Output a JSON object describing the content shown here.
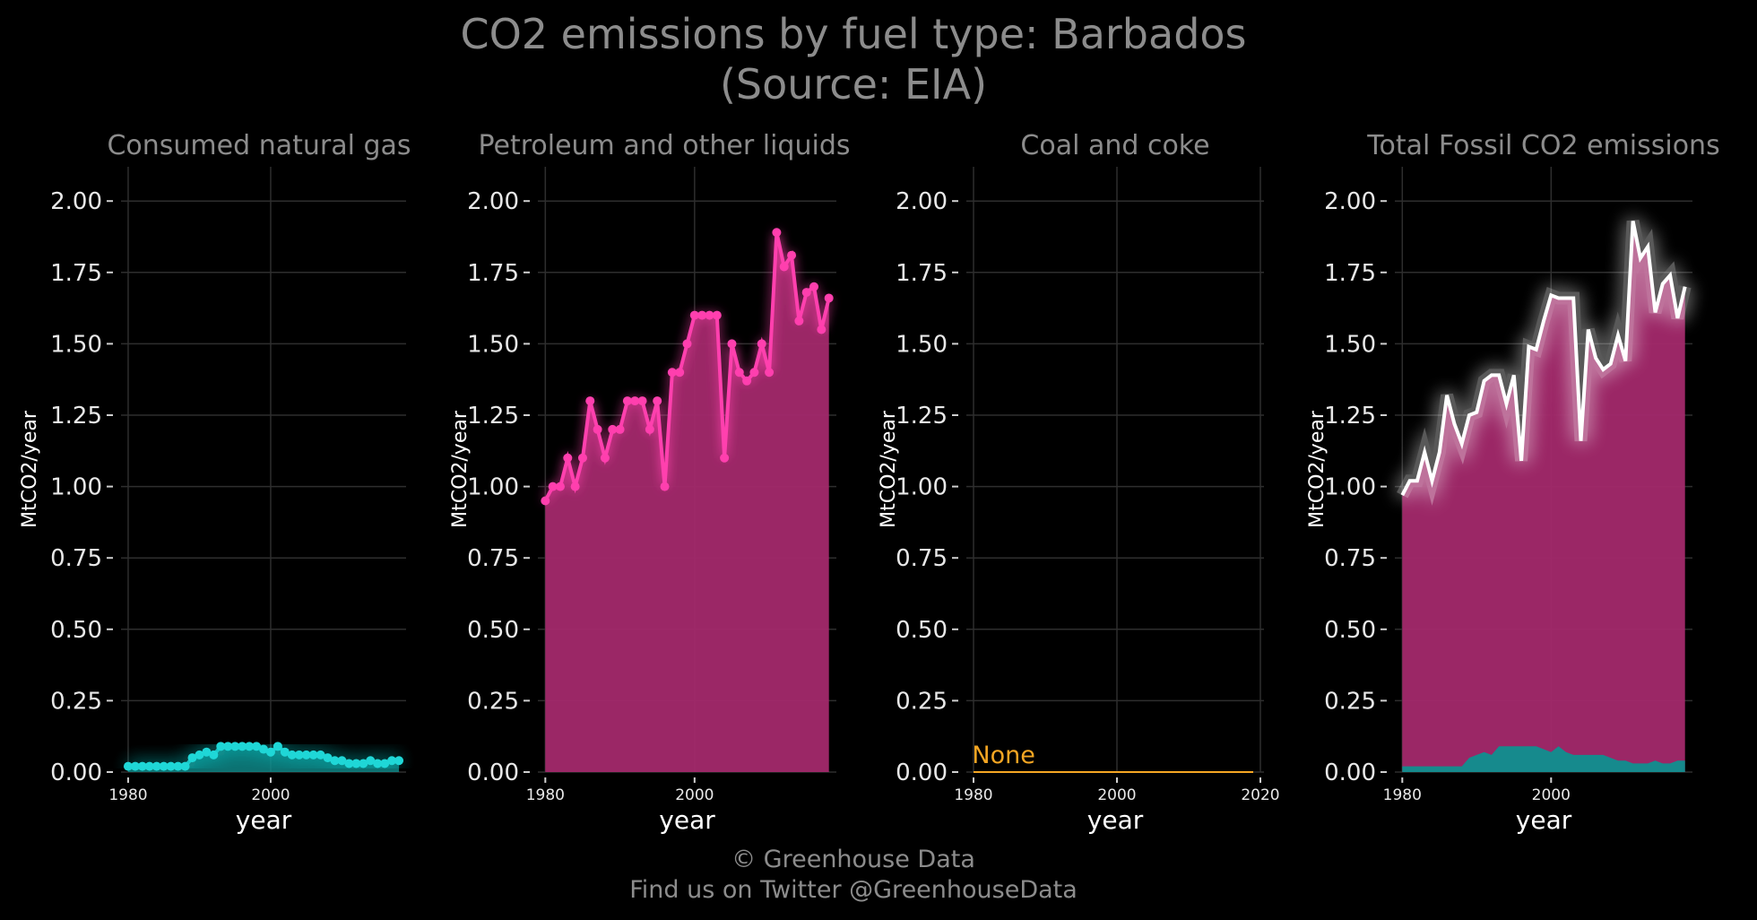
{
  "title_line1": "CO2 emissions by fuel type: Barbados",
  "title_line2": "(Source: EIA)",
  "footer_line1": "© Greenhouse Data",
  "footer_line2": "Find us on Twitter @GreenhouseData",
  "colors": {
    "gas": "#1fd7d7",
    "gas_fill": "#0f8f8f",
    "petroleum": "#ff3fae",
    "petroleum_fill": "#a3296b",
    "coal": "#f5a623",
    "total_line": "#ffffff",
    "background": "#000000"
  },
  "chart_data": [
    {
      "type": "area",
      "title": "Consumed natural gas",
      "xlabel": "year",
      "ylabel": "MtCO2/year",
      "ylim": [
        0,
        2.0
      ],
      "yticks": [
        "0.00",
        "0.25",
        "0.50",
        "0.75",
        "1.00",
        "1.25",
        "1.50",
        "1.75",
        "2.00"
      ],
      "xticks": [
        "1980",
        "2000"
      ],
      "xticks_values": [
        1980,
        2000
      ],
      "xlim": [
        1979,
        2019
      ],
      "series": [
        {
          "x": [
            1980,
            1981,
            1982,
            1983,
            1984,
            1985,
            1986,
            1987,
            1988,
            1989,
            1990,
            1991,
            1992,
            1993,
            1994,
            1995,
            1996,
            1997,
            1998,
            1999,
            2000,
            2001,
            2002,
            2003,
            2004,
            2005,
            2006,
            2007,
            2008,
            2009,
            2010,
            2011,
            2012,
            2013,
            2014,
            2015,
            2016,
            2017,
            2018
          ],
          "values": [
            0.02,
            0.02,
            0.02,
            0.02,
            0.02,
            0.02,
            0.02,
            0.02,
            0.02,
            0.05,
            0.06,
            0.07,
            0.06,
            0.09,
            0.09,
            0.09,
            0.09,
            0.09,
            0.09,
            0.08,
            0.07,
            0.09,
            0.07,
            0.06,
            0.06,
            0.06,
            0.06,
            0.06,
            0.05,
            0.04,
            0.04,
            0.03,
            0.03,
            0.03,
            0.04,
            0.03,
            0.03,
            0.04,
            0.04
          ]
        }
      ]
    },
    {
      "type": "area",
      "title": "Petroleum and other liquids",
      "xlabel": "year",
      "ylabel": "MtCO2/year",
      "ylim": [
        0,
        2.0
      ],
      "yticks": [
        "0.00",
        "0.25",
        "0.50",
        "0.75",
        "1.00",
        "1.25",
        "1.50",
        "1.75",
        "2.00"
      ],
      "xticks": [
        "1980",
        "2000"
      ],
      "xticks_values": [
        1980,
        2000
      ],
      "xlim": [
        1979,
        2019
      ],
      "series": [
        {
          "x": [
            1980,
            1981,
            1982,
            1983,
            1984,
            1985,
            1986,
            1987,
            1988,
            1989,
            1990,
            1991,
            1992,
            1993,
            1994,
            1995,
            1996,
            1997,
            1998,
            1999,
            2000,
            2001,
            2002,
            2003,
            2004,
            2005,
            2006,
            2007,
            2008,
            2009,
            2010,
            2011,
            2012,
            2013,
            2014,
            2015,
            2016,
            2017,
            2018
          ],
          "values": [
            0.95,
            1.0,
            1.0,
            1.1,
            1.0,
            1.1,
            1.3,
            1.2,
            1.1,
            1.2,
            1.2,
            1.3,
            1.3,
            1.3,
            1.2,
            1.3,
            1.0,
            1.4,
            1.4,
            1.5,
            1.6,
            1.6,
            1.6,
            1.6,
            1.1,
            1.5,
            1.4,
            1.37,
            1.4,
            1.5,
            1.4,
            1.89,
            1.77,
            1.81,
            1.58,
            1.68,
            1.7,
            1.55,
            1.66
          ]
        }
      ]
    },
    {
      "type": "area",
      "title": "Coal and coke",
      "xlabel": "year",
      "ylabel": "MtCO2/year",
      "ylim": [
        0,
        2.0
      ],
      "yticks": [
        "0.00",
        "0.25",
        "0.50",
        "0.75",
        "1.00",
        "1.25",
        "1.50",
        "1.75",
        "2.00"
      ],
      "xticks": [
        "1980",
        "2000",
        "2020"
      ],
      "xticks_values": [
        1980,
        2000,
        2020
      ],
      "xlim": [
        1979,
        2020.5
      ],
      "annotation": "None",
      "series": [
        {
          "x": [
            1980,
            2019
          ],
          "values": [
            0,
            0
          ]
        }
      ]
    },
    {
      "type": "area",
      "title": "Total Fossil CO2 emissions",
      "xlabel": "year",
      "ylabel": "MtCO2/year",
      "ylim": [
        0,
        2.0
      ],
      "yticks": [
        "0.00",
        "0.25",
        "0.50",
        "0.75",
        "1.00",
        "1.25",
        "1.50",
        "1.75",
        "2.00"
      ],
      "xticks": [
        "1980",
        "2000"
      ],
      "xticks_values": [
        1980,
        2000
      ],
      "xlim": [
        1979,
        2019
      ],
      "series": [
        {
          "x": [
            1980,
            1981,
            1982,
            1983,
            1984,
            1985,
            1986,
            1987,
            1988,
            1989,
            1990,
            1991,
            1992,
            1993,
            1994,
            1995,
            1996,
            1997,
            1998,
            1999,
            2000,
            2001,
            2002,
            2003,
            2004,
            2005,
            2006,
            2007,
            2008,
            2009,
            2010,
            2011,
            2012,
            2013,
            2014,
            2015,
            2016,
            2017,
            2018
          ],
          "values": [
            0.97,
            1.02,
            1.02,
            1.12,
            1.02,
            1.12,
            1.32,
            1.22,
            1.15,
            1.25,
            1.26,
            1.37,
            1.39,
            1.39,
            1.29,
            1.39,
            1.09,
            1.49,
            1.48,
            1.58,
            1.67,
            1.66,
            1.66,
            1.66,
            1.16,
            1.55,
            1.45,
            1.41,
            1.43,
            1.53,
            1.44,
            1.93,
            1.8,
            1.84,
            1.61,
            1.71,
            1.74,
            1.59,
            1.7
          ]
        }
      ]
    }
  ]
}
